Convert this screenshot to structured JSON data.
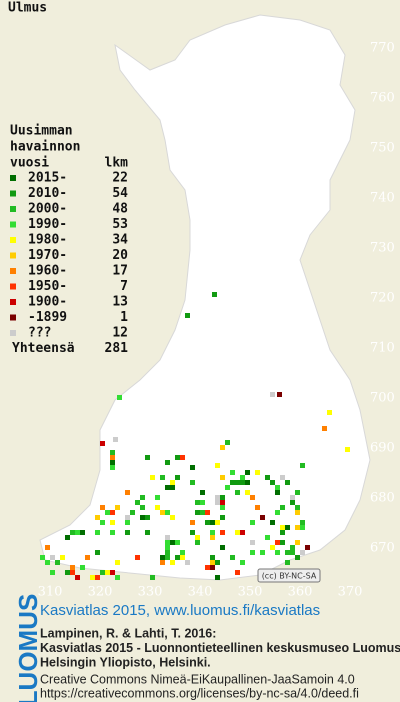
{
  "header": {
    "title": "Ulmus"
  },
  "legend": {
    "title_lines": [
      "Uusimman",
      "havainnon",
      "vuosi"
    ],
    "count_header": "lkm",
    "entries": [
      {
        "label": "2015-",
        "count": 22,
        "color": "#006e00"
      },
      {
        "label": "2010-",
        "count": 54,
        "color": "#119a11"
      },
      {
        "label": "2000-",
        "count": 48,
        "color": "#22bb22"
      },
      {
        "label": "1990-",
        "count": 53,
        "color": "#33dd33"
      },
      {
        "label": "1980-",
        "count": 34,
        "color": "#ffff00"
      },
      {
        "label": "1970-",
        "count": 20,
        "color": "#ffcc00"
      },
      {
        "label": "1960-",
        "count": 17,
        "color": "#ff8000"
      },
      {
        "label": "1950-",
        "count": 7,
        "color": "#ff3300"
      },
      {
        "label": "1900-",
        "count": 13,
        "color": "#cc0000"
      },
      {
        "label": "-1899",
        "count": 1,
        "color": "#7a0000"
      },
      {
        "label": "???",
        "count": 12,
        "color": "#cccccc"
      }
    ],
    "total_label": "Yhteensä",
    "total": 281
  },
  "map": {
    "northing": [
      770,
      760,
      750,
      740,
      730,
      720,
      710,
      700,
      690,
      680,
      670
    ],
    "easting": [
      310,
      320,
      330,
      340,
      350,
      360,
      370
    ],
    "license_badge": "(cc) BY-NC-SA"
  },
  "footer": {
    "logo": "LUOMUS",
    "link": "Kasviatlas 2015, www.luomus.fi/kasviatlas",
    "citation": [
      "Lampinen, R. & Lahti, T. 2016:",
      "Kasviatlas 2015 - Luonnontieteellinen keskusmuseo Luomus,",
      "Helsingin Yliopisto, Helsinki."
    ],
    "license": [
      "Creative Commons Nimeä-EiKaupallinen-JaaSamoin 4.0",
      "https://creativecommons.org/licenses/by-nc-sa/4.0/deed.fi"
    ]
  }
}
